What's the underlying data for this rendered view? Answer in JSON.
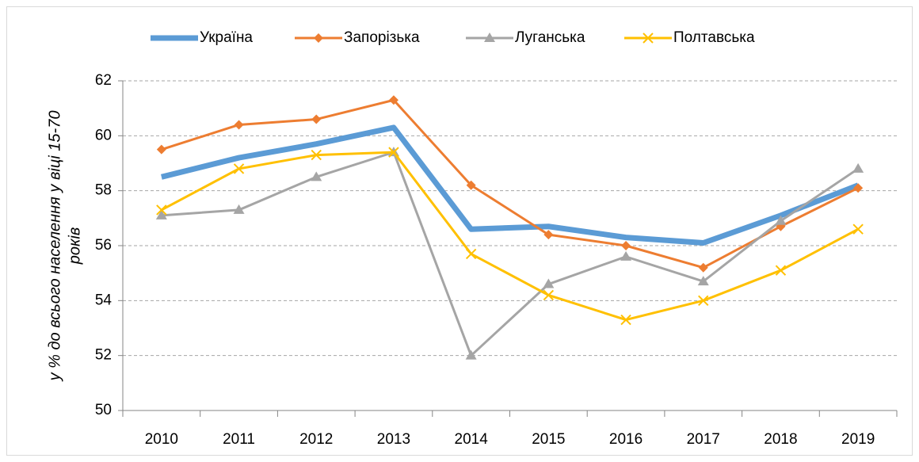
{
  "chart_data": {
    "type": "line",
    "y_label": [
      "у % до всього населення у віці 15-70",
      "років"
    ],
    "categories": [
      "2010",
      "2011",
      "2012",
      "2013",
      "2014",
      "2015",
      "2016",
      "2017",
      "2018",
      "2019"
    ],
    "series": [
      {
        "name": "Україна",
        "color": "#5b9bd5",
        "marker": "none",
        "values": [
          58.5,
          59.2,
          59.7,
          60.3,
          56.6,
          56.7,
          56.3,
          56.1,
          57.1,
          58.2
        ]
      },
      {
        "name": "Запорізька",
        "color": "#ed7d31",
        "marker": "diamond",
        "values": [
          59.5,
          60.4,
          60.6,
          61.3,
          58.2,
          56.4,
          56.0,
          55.2,
          56.7,
          58.1
        ]
      },
      {
        "name": "Луганська",
        "color": "#a5a5a5",
        "marker": "triangle",
        "values": [
          57.1,
          57.3,
          58.5,
          59.4,
          52.0,
          54.6,
          55.6,
          54.7,
          56.9,
          58.8
        ]
      },
      {
        "name": "Полтавська",
        "color": "#ffc000",
        "marker": "x",
        "values": [
          57.3,
          58.8,
          59.3,
          59.4,
          55.7,
          54.2,
          53.3,
          54.0,
          55.1,
          56.6
        ]
      }
    ],
    "ylim": [
      50,
      62
    ],
    "yticks": [
      50,
      52,
      54,
      56,
      58,
      60,
      62
    ],
    "grid": true,
    "legend": "top"
  }
}
